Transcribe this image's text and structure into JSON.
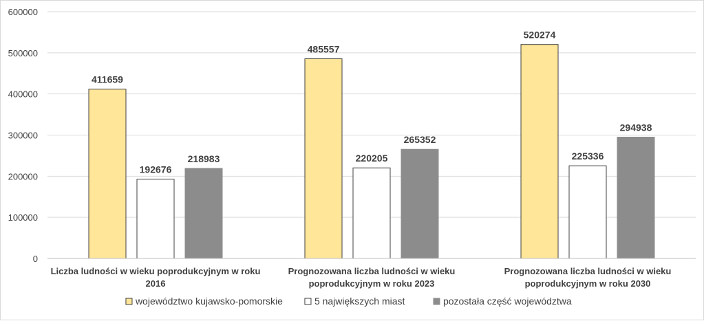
{
  "chart_data": {
    "type": "bar",
    "categories": [
      [
        "Liczba ludności w wieku poprodukcyjnym w roku",
        "2016"
      ],
      [
        "Prognozowana liczba ludności w wieku",
        "poprodukcyjnym w roku 2023"
      ],
      [
        "Prognozowana liczba ludności w wieku",
        "poprodukcyjnym w roku 2030"
      ]
    ],
    "series": [
      {
        "name": "województwo kujawsko-pomorskie",
        "values": [
          411659,
          485557,
          520274
        ],
        "color": "#ffe699",
        "stroke": "#404040"
      },
      {
        "name": "5 największych miast",
        "values": [
          192676,
          220205,
          225336
        ],
        "color": "#ffffff",
        "stroke": "#404040"
      },
      {
        "name": "pozostała część województwa",
        "values": [
          218983,
          265352,
          294938
        ],
        "color": "#8c8c8c",
        "stroke": "#8c8c8c"
      }
    ],
    "yticks": [
      "0",
      "100000",
      "200000",
      "300000",
      "400000",
      "500000",
      "600000"
    ],
    "ylim": [
      0,
      600000
    ],
    "grid": true,
    "legend": "bottom",
    "gridColor": "#d9d9d9",
    "axisColor": "#bfbfbf"
  }
}
